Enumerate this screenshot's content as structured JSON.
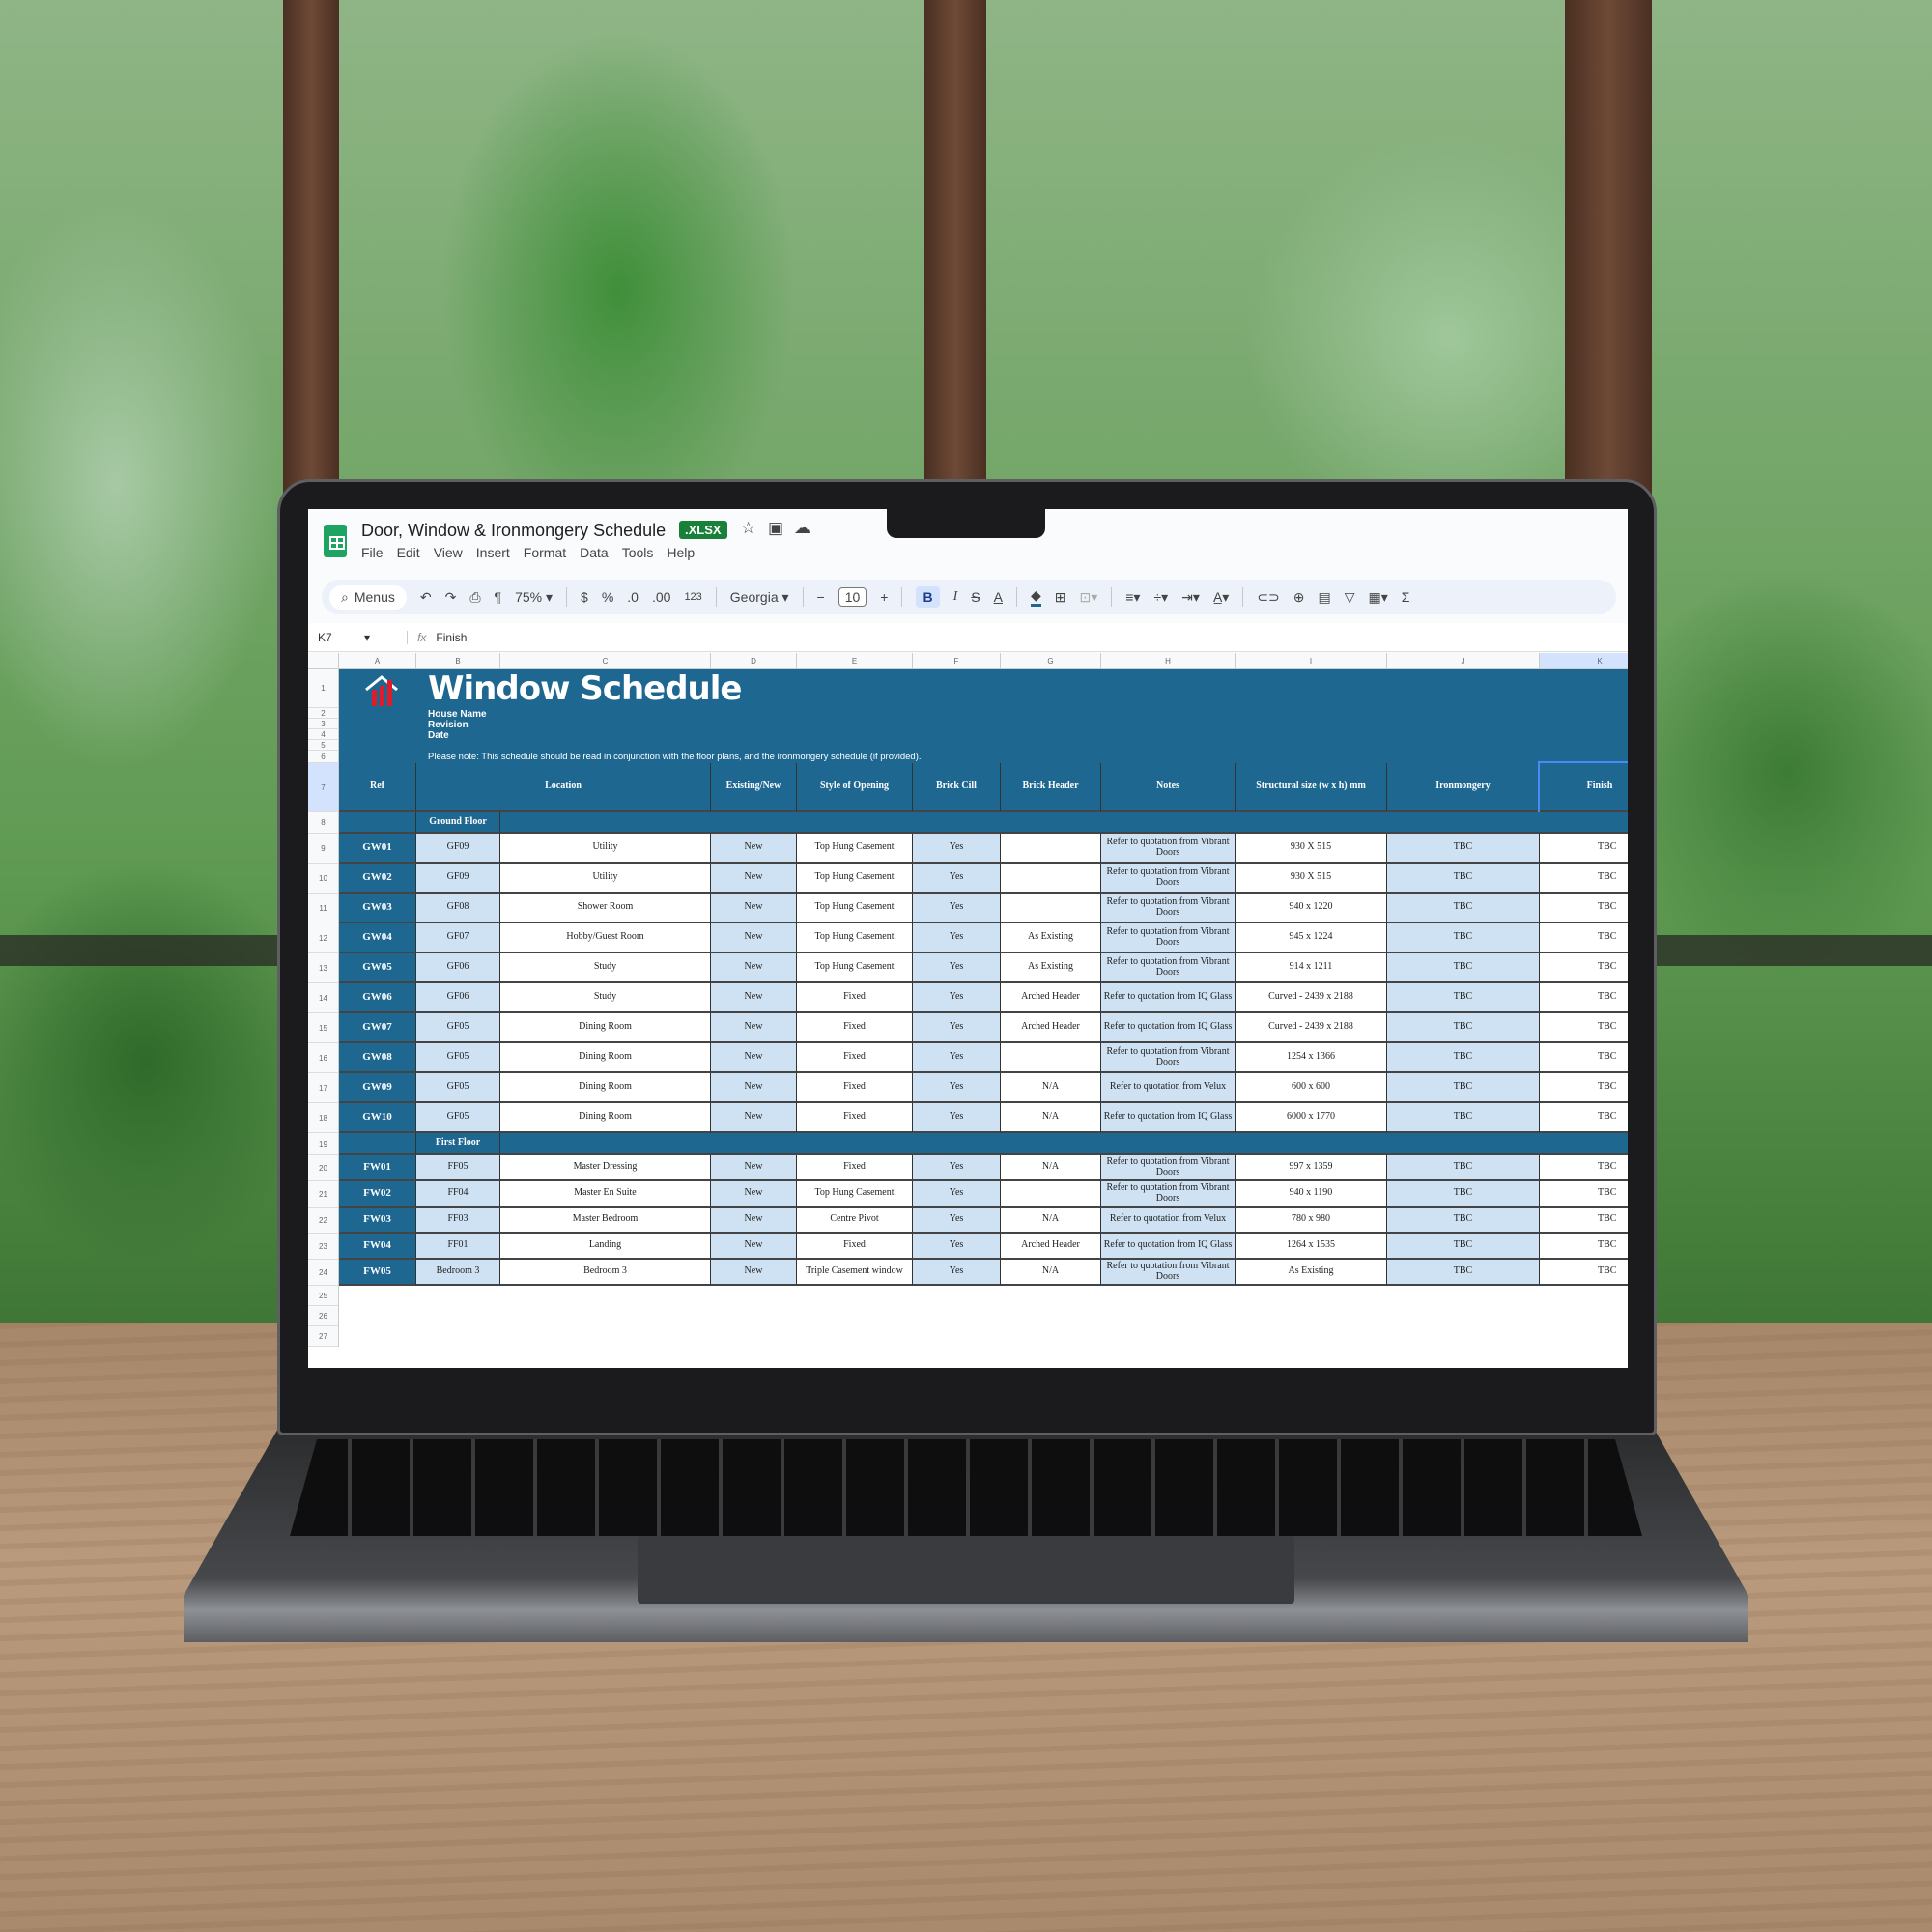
{
  "app": {
    "doc_title": "Door, Window & Ironmongery Schedule",
    "badge": ".XLSX",
    "menu": [
      "File",
      "Edit",
      "View",
      "Insert",
      "Format",
      "Data",
      "Tools",
      "Help"
    ],
    "toolbar": {
      "search": "Menus",
      "zoom": "75%",
      "currency": "$",
      "percent": "%",
      "dec_less": ".0",
      "dec_more": ".00",
      "format_123": "123",
      "font": "Georgia",
      "font_size": "10",
      "bold": "B",
      "italic": "I",
      "strike": "S",
      "text_color": "A",
      "sum": "Σ"
    },
    "formula": {
      "cell_ref": "K7",
      "fx": "fx",
      "value": "Finish"
    },
    "accent": "#1d6791",
    "light_fill": "#cfe2f3"
  },
  "sheet": {
    "column_letters": [
      "A",
      "B",
      "C",
      "D",
      "E",
      "F",
      "G",
      "H",
      "I",
      "J",
      "K"
    ],
    "title": "Window Schedule",
    "house_name": "House Name",
    "revision": "Revision",
    "date": "Date",
    "note": "Please note: This schedule should be read in conjunction with the floor plans, and the ironmongery schedule (if provided).",
    "headers": [
      "Ref",
      "Location",
      "Existing/New",
      "Style of Opening",
      "Brick Cill",
      "Brick Header",
      "Notes",
      "Structural size    (w x h) mm",
      "Ironmongery",
      "Finish"
    ],
    "sections": [
      {
        "label": "Ground Floor",
        "rows": [
          [
            "GW01",
            "GF09",
            "Utility",
            "New",
            "Top Hung Casement",
            "Yes",
            "",
            "Refer to quotation from Vibrant Doors",
            "930 X 515",
            "TBC",
            "TBC"
          ],
          [
            "GW02",
            "GF09",
            "Utility",
            "New",
            "Top Hung Casement",
            "Yes",
            "",
            "Refer to quotation from Vibrant Doors",
            "930 X 515",
            "TBC",
            "TBC"
          ],
          [
            "GW03",
            "GF08",
            "Shower Room",
            "New",
            "Top Hung Casement",
            "Yes",
            "",
            "Refer to quotation from Vibrant Doors",
            "940 x 1220",
            "TBC",
            "TBC"
          ],
          [
            "GW04",
            "GF07",
            "Hobby/Guest Room",
            "New",
            "Top Hung Casement",
            "Yes",
            "As Existing",
            "Refer to quotation from Vibrant Doors",
            "945 x 1224",
            "TBC",
            "TBC"
          ],
          [
            "GW05",
            "GF06",
            "Study",
            "New",
            "Top Hung Casement",
            "Yes",
            "As Existing",
            "Refer to quotation from Vibrant Doors",
            "914 x 1211",
            "TBC",
            "TBC"
          ],
          [
            "GW06",
            "GF06",
            "Study",
            "New",
            "Fixed",
            "Yes",
            "Arched Header",
            "Refer to quotation from IQ Glass",
            "Curved - 2439 x 2188",
            "TBC",
            "TBC"
          ],
          [
            "GW07",
            "GF05",
            "Dining Room",
            "New",
            "Fixed",
            "Yes",
            "Arched Header",
            "Refer to quotation from IQ Glass",
            "Curved - 2439 x 2188",
            "TBC",
            "TBC"
          ],
          [
            "GW08",
            "GF05",
            "Dining Room",
            "New",
            "Fixed",
            "Yes",
            "",
            "Refer to quotation from Vibrant Doors",
            "1254 x 1366",
            "TBC",
            "TBC"
          ],
          [
            "GW09",
            "GF05",
            "Dining Room",
            "New",
            "Fixed",
            "Yes",
            "N/A",
            "Refer to quotation from Velux",
            "600 x 600",
            "TBC",
            "TBC"
          ],
          [
            "GW10",
            "GF05",
            "Dining Room",
            "New",
            "Fixed",
            "Yes",
            "N/A",
            "Refer to quotation from IQ Glass",
            "6000 x 1770",
            "TBC",
            "TBC"
          ]
        ]
      },
      {
        "label": "First Floor",
        "rows": [
          [
            "FW01",
            "FF05",
            "Master Dressing",
            "New",
            "Fixed",
            "Yes",
            "N/A",
            "Refer to quotation from Vibrant Doors",
            "997 x 1359",
            "TBC",
            "TBC"
          ],
          [
            "FW02",
            "FF04",
            "Master En Suite",
            "New",
            "Top Hung Casement",
            "Yes",
            "",
            "Refer to quotation from Vibrant Doors",
            "940 x 1190",
            "TBC",
            "TBC"
          ],
          [
            "FW03",
            "FF03",
            "Master Bedroom",
            "New",
            "Centre Pivot",
            "Yes",
            "N/A",
            "Refer to quotation from Velux",
            "780 x 980",
            "TBC",
            "TBC"
          ],
          [
            "FW04",
            "FF01",
            "Landing",
            "New",
            "Fixed",
            "Yes",
            "Arched Header",
            "Refer to quotation from IQ Glass",
            "1264 x 1535",
            "TBC",
            "TBC"
          ],
          [
            "FW05",
            "Bedroom 3",
            "Bedroom 3",
            "New",
            "Triple Casement window",
            "Yes",
            "N/A",
            "Refer to quotation from Vibrant Doors",
            "As Existing",
            "TBC",
            "TBC"
          ]
        ]
      }
    ]
  }
}
